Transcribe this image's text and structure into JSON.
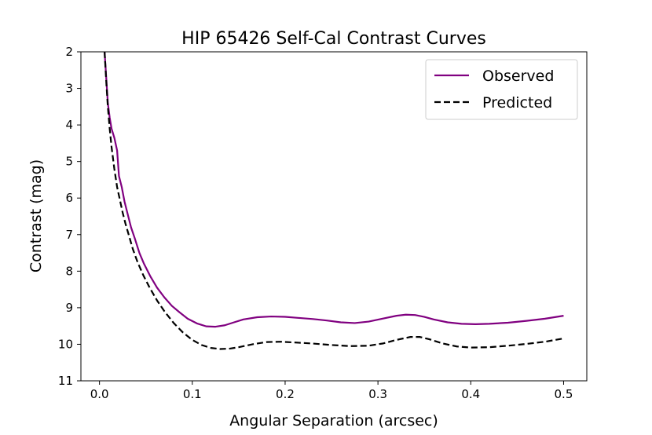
{
  "chart_data": {
    "type": "line",
    "title": "HIP 65426 Self-Cal Contrast Curves",
    "xlabel": "Angular Separation (arcsec)",
    "ylabel": "Contrast (mag)",
    "xlim": [
      -0.02,
      0.525
    ],
    "ylim": [
      11,
      2
    ],
    "y_inverted": true,
    "xticks": [
      0.0,
      0.1,
      0.2,
      0.3,
      0.4,
      0.5
    ],
    "xtick_labels": [
      "0.0",
      "0.1",
      "0.2",
      "0.3",
      "0.4",
      "0.5"
    ],
    "yticks": [
      2,
      3,
      4,
      5,
      6,
      7,
      8,
      9,
      10,
      11
    ],
    "ytick_labels": [
      "2",
      "3",
      "4",
      "5",
      "6",
      "7",
      "8",
      "9",
      "10",
      "11"
    ],
    "grid": false,
    "legend_position": "top-right",
    "series": [
      {
        "name": "Observed",
        "color": "#800080",
        "style": "solid",
        "x": [
          0.0055,
          0.0075,
          0.009,
          0.011,
          0.013,
          0.016,
          0.019,
          0.021,
          0.024,
          0.027,
          0.03,
          0.034,
          0.038,
          0.043,
          0.048,
          0.055,
          0.062,
          0.07,
          0.078,
          0.086,
          0.095,
          0.105,
          0.115,
          0.125,
          0.135,
          0.145,
          0.155,
          0.17,
          0.185,
          0.2,
          0.215,
          0.23,
          0.245,
          0.26,
          0.275,
          0.29,
          0.305,
          0.32,
          0.33,
          0.34,
          0.35,
          0.36,
          0.375,
          0.39,
          0.405,
          0.42,
          0.44,
          0.46,
          0.48,
          0.5
        ],
        "y": [
          2.0,
          2.8,
          3.4,
          3.8,
          4.1,
          4.35,
          4.7,
          5.4,
          5.7,
          6.1,
          6.4,
          6.8,
          7.1,
          7.5,
          7.8,
          8.15,
          8.45,
          8.72,
          8.95,
          9.12,
          9.3,
          9.43,
          9.51,
          9.52,
          9.48,
          9.4,
          9.32,
          9.26,
          9.24,
          9.25,
          9.28,
          9.31,
          9.35,
          9.4,
          9.42,
          9.38,
          9.3,
          9.22,
          9.19,
          9.2,
          9.25,
          9.32,
          9.4,
          9.44,
          9.45,
          9.44,
          9.41,
          9.36,
          9.3,
          9.22
        ]
      },
      {
        "name": "Predicted",
        "color": "#000000",
        "style": "dashed",
        "x": [
          0.0055,
          0.0075,
          0.009,
          0.011,
          0.013,
          0.016,
          0.019,
          0.022,
          0.025,
          0.028,
          0.032,
          0.036,
          0.041,
          0.047,
          0.054,
          0.062,
          0.07,
          0.08,
          0.09,
          0.1,
          0.11,
          0.12,
          0.13,
          0.14,
          0.15,
          0.165,
          0.18,
          0.195,
          0.21,
          0.23,
          0.25,
          0.27,
          0.29,
          0.305,
          0.32,
          0.335,
          0.345,
          0.355,
          0.37,
          0.385,
          0.4,
          0.42,
          0.44,
          0.46,
          0.48,
          0.5
        ],
        "y": [
          2.0,
          2.9,
          3.5,
          4.1,
          4.6,
          5.2,
          5.7,
          6.05,
          6.4,
          6.7,
          7.05,
          7.4,
          7.75,
          8.1,
          8.45,
          8.8,
          9.1,
          9.42,
          9.68,
          9.88,
          10.02,
          10.1,
          10.13,
          10.12,
          10.08,
          10.0,
          9.94,
          9.93,
          9.95,
          9.98,
          10.02,
          10.05,
          10.04,
          9.98,
          9.88,
          9.8,
          9.8,
          9.86,
          9.98,
          10.06,
          10.09,
          10.08,
          10.04,
          9.99,
          9.93,
          9.84
        ]
      }
    ]
  }
}
